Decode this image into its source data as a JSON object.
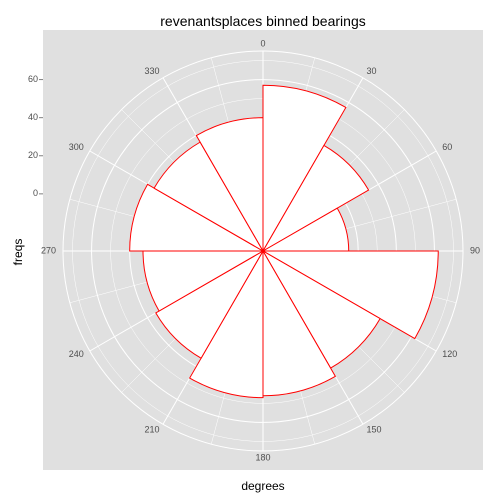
{
  "chart_data": {
    "type": "bar",
    "coordinate_system": "polar",
    "title": "revenantsplaces binned bearings",
    "xlabel": "degrees",
    "ylabel": "freqs",
    "angle_ticks": [
      "0",
      "30",
      "60",
      "90",
      "120",
      "150",
      "180",
      "210",
      "240",
      "270",
      "300",
      "330"
    ],
    "radius_ticks": [
      "0",
      "20",
      "40",
      "60"
    ],
    "ylim": [
      -30,
      75
    ],
    "grid": true,
    "bin_width_degrees": 30,
    "categories": [
      "0-30",
      "30-60",
      "60-90",
      "90-120",
      "120-150",
      "150-180",
      "180-210",
      "210-240",
      "240-270",
      "270-300",
      "300-330",
      "330-360"
    ],
    "values": [
      57,
      34,
      15,
      62,
      41,
      46,
      47,
      35,
      33,
      40,
      36,
      40
    ],
    "colors": {
      "panel": "#e0e0e0",
      "grid": "#ffffff",
      "bar_fill": "#ffffff",
      "bar_stroke": "#ff0000"
    }
  }
}
